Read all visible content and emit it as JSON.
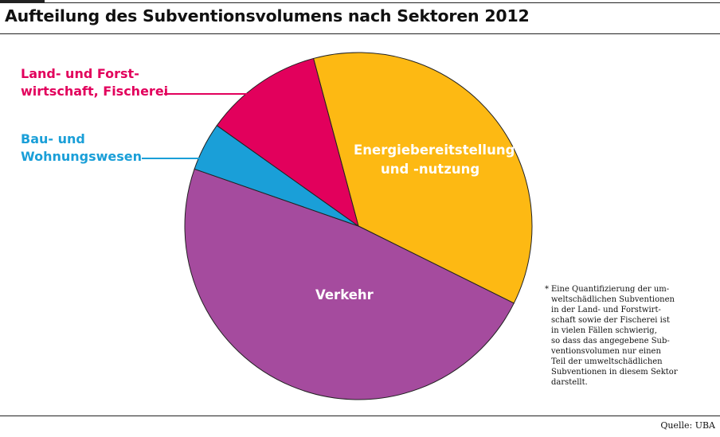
{
  "title": "Aufteilung des Subventionsvolumens nach Sektoren 2012",
  "source": "Quelle: UBA",
  "footnote": {
    "marker": "*",
    "lines": [
      "Eine Quantifizierung der um-",
      "weltschädlichen Subventionen",
      "in der Land- und Forstwirt-",
      "schaft sowie der Fischerei ist",
      "in vielen Fällen schwierig,",
      "so dass das angegebene Sub-",
      "ventionsvolumen nur einen",
      "Teil der umweltschädlichen",
      "Subventionen in diesem Sektor",
      "darstellt."
    ]
  },
  "labels": {
    "energie": [
      "Energiebereitstellung",
      "und -nutzung"
    ],
    "verkehr": [
      "Verkehr"
    ],
    "bau": [
      "Bau- und",
      "Wohnungswesen"
    ],
    "land": [
      "Land- und Forst-",
      "wirtschaft, Fischerei"
    ]
  },
  "chart_data": {
    "type": "pie",
    "title": "Aufteilung des Subventionsvolumens nach Sektoren 2012",
    "slices": [
      {
        "label": "Energiebereitstellung und -nutzung",
        "value": 36.5,
        "color": "#fdb913"
      },
      {
        "label": "Verkehr",
        "value": 48.0,
        "color": "#a54b9e"
      },
      {
        "label": "Bau- und Wohnungswesen",
        "value": 4.5,
        "color": "#1a9fd8"
      },
      {
        "label": "Land- und Forstwirtschaft, Fischerei",
        "value": 11.0,
        "color": "#e2005c"
      }
    ],
    "legend": "none (direct labels)"
  }
}
